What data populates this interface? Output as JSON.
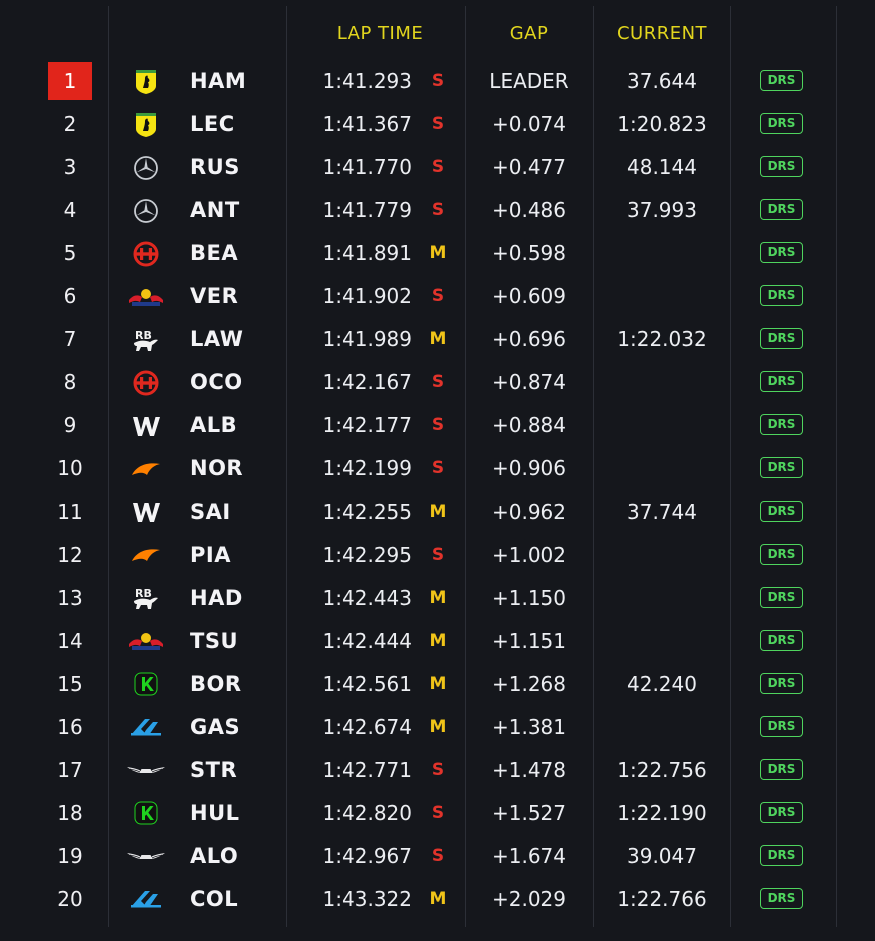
{
  "headers": {
    "lap_time": "LAP TIME",
    "gap": "GAP",
    "current": "CURRENT"
  },
  "colors": {
    "soft": "#e2332b",
    "medium": "#f0c419",
    "drs": "#4fd45e",
    "header": "#e1d51e",
    "leader_badge": "#e1251b"
  },
  "drivers": [
    {
      "pos": "1",
      "team": "ferrari-icon",
      "code": "HAM",
      "lap": "1:41.293",
      "tyre": "S",
      "gap": "LEADER",
      "current": "37.644",
      "drs": "DRS"
    },
    {
      "pos": "2",
      "team": "ferrari-icon",
      "code": "LEC",
      "lap": "1:41.367",
      "tyre": "S",
      "gap": "+0.074",
      "current": "1:20.823",
      "drs": "DRS"
    },
    {
      "pos": "3",
      "team": "mercedes-icon",
      "code": "RUS",
      "lap": "1:41.770",
      "tyre": "S",
      "gap": "+0.477",
      "current": "48.144",
      "drs": "DRS"
    },
    {
      "pos": "4",
      "team": "mercedes-icon",
      "code": "ANT",
      "lap": "1:41.779",
      "tyre": "S",
      "gap": "+0.486",
      "current": "37.993",
      "drs": "DRS"
    },
    {
      "pos": "5",
      "team": "haas-icon",
      "code": "BEA",
      "lap": "1:41.891",
      "tyre": "M",
      "gap": "+0.598",
      "current": "",
      "drs": "DRS"
    },
    {
      "pos": "6",
      "team": "redbull-icon",
      "code": "VER",
      "lap": "1:41.902",
      "tyre": "S",
      "gap": "+0.609",
      "current": "",
      "drs": "DRS"
    },
    {
      "pos": "7",
      "team": "racing-bulls-icon",
      "code": "LAW",
      "lap": "1:41.989",
      "tyre": "M",
      "gap": "+0.696",
      "current": "1:22.032",
      "drs": "DRS"
    },
    {
      "pos": "8",
      "team": "haas-icon",
      "code": "OCO",
      "lap": "1:42.167",
      "tyre": "S",
      "gap": "+0.874",
      "current": "",
      "drs": "DRS"
    },
    {
      "pos": "9",
      "team": "williams-icon",
      "code": "ALB",
      "lap": "1:42.177",
      "tyre": "S",
      "gap": "+0.884",
      "current": "",
      "drs": "DRS"
    },
    {
      "pos": "10",
      "team": "mclaren-icon",
      "code": "NOR",
      "lap": "1:42.199",
      "tyre": "S",
      "gap": "+0.906",
      "current": "",
      "drs": "DRS"
    },
    {
      "pos": "11",
      "team": "williams-icon",
      "code": "SAI",
      "lap": "1:42.255",
      "tyre": "M",
      "gap": "+0.962",
      "current": "37.744",
      "drs": "DRS"
    },
    {
      "pos": "12",
      "team": "mclaren-icon",
      "code": "PIA",
      "lap": "1:42.295",
      "tyre": "S",
      "gap": "+1.002",
      "current": "",
      "drs": "DRS"
    },
    {
      "pos": "13",
      "team": "racing-bulls-icon",
      "code": "HAD",
      "lap": "1:42.443",
      "tyre": "M",
      "gap": "+1.150",
      "current": "",
      "drs": "DRS"
    },
    {
      "pos": "14",
      "team": "redbull-icon",
      "code": "TSU",
      "lap": "1:42.444",
      "tyre": "M",
      "gap": "+1.151",
      "current": "",
      "drs": "DRS"
    },
    {
      "pos": "15",
      "team": "kick-sauber-icon",
      "code": "BOR",
      "lap": "1:42.561",
      "tyre": "M",
      "gap": "+1.268",
      "current": "42.240",
      "drs": "DRS"
    },
    {
      "pos": "16",
      "team": "alpine-icon",
      "code": "GAS",
      "lap": "1:42.674",
      "tyre": "M",
      "gap": "+1.381",
      "current": "",
      "drs": "DRS"
    },
    {
      "pos": "17",
      "team": "aston-martin-icon",
      "code": "STR",
      "lap": "1:42.771",
      "tyre": "S",
      "gap": "+1.478",
      "current": "1:22.756",
      "drs": "DRS"
    },
    {
      "pos": "18",
      "team": "kick-sauber-icon",
      "code": "HUL",
      "lap": "1:42.820",
      "tyre": "S",
      "gap": "+1.527",
      "current": "1:22.190",
      "drs": "DRS"
    },
    {
      "pos": "19",
      "team": "aston-martin-icon",
      "code": "ALO",
      "lap": "1:42.967",
      "tyre": "S",
      "gap": "+1.674",
      "current": "39.047",
      "drs": "DRS"
    },
    {
      "pos": "20",
      "team": "alpine-icon",
      "code": "COL",
      "lap": "1:43.322",
      "tyre": "M",
      "gap": "+2.029",
      "current": "1:22.766",
      "drs": "DRS"
    }
  ]
}
